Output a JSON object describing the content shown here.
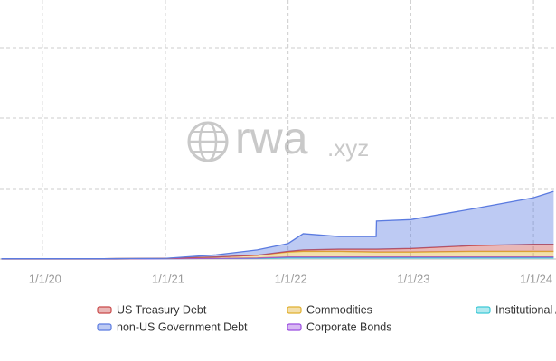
{
  "chart_data": {
    "type": "stacked-area",
    "watermark": {
      "brand": "rwa",
      "suffix": ".xyz"
    },
    "x": [
      "2019-09-01",
      "2020-01-01",
      "2020-07-01",
      "2021-01-01",
      "2021-06-01",
      "2021-10-01",
      "2022-01-01",
      "2022-02-15",
      "2022-06-01",
      "2022-09-20",
      "2022-09-21",
      "2023-01-01",
      "2023-07-01",
      "2024-01-01",
      "2024-03-01"
    ],
    "xlim": [
      "2019-08-28",
      "2024-03-08"
    ],
    "xticks": [
      {
        "value": "2020-01-01",
        "label": "1/1/20"
      },
      {
        "value": "2021-01-01",
        "label": "1/1/21"
      },
      {
        "value": "2022-01-01",
        "label": "1/1/22"
      },
      {
        "value": "2023-01-01",
        "label": "1/1/23"
      },
      {
        "value": "2024-01-01",
        "label": "1/1/24"
      }
    ],
    "ylim": [
      0,
      3.68
    ],
    "yticks": [
      0,
      1,
      2,
      3
    ],
    "grid": true,
    "series": [
      {
        "name": "Institutional Alternative Funds",
        "color": "#3ec9d6",
        "values": [
          0,
          0,
          0,
          0.005,
          0.01,
          0.01,
          0.02,
          0.02,
          0.02,
          0.02,
          0.02,
          0.02,
          0.02,
          0.02,
          0.02
        ]
      },
      {
        "name": "Corporate Bonds",
        "color": "#9b4de0",
        "values": [
          0,
          0,
          0,
          0,
          0,
          0.005,
          0.01,
          0.01,
          0.01,
          0.01,
          0.01,
          0.01,
          0.01,
          0.01,
          0.01
        ]
      },
      {
        "name": "Commodities",
        "color": "#e0b030",
        "values": [
          0.005,
          0.005,
          0.005,
          0.005,
          0.02,
          0.04,
          0.07,
          0.08,
          0.08,
          0.07,
          0.07,
          0.07,
          0.08,
          0.08,
          0.08
        ]
      },
      {
        "name": "US Treasury Debt",
        "color": "#c94a4a",
        "values": [
          0,
          0,
          0,
          0,
          0,
          0,
          0.01,
          0.02,
          0.03,
          0.04,
          0.04,
          0.05,
          0.08,
          0.1,
          0.1
        ]
      },
      {
        "name": "non-US Government Debt",
        "color": "#5b7be0",
        "values": [
          0,
          0,
          0,
          0,
          0.03,
          0.075,
          0.11,
          0.23,
          0.18,
          0.18,
          0.4,
          0.41,
          0.52,
          0.66,
          0.75
        ]
      }
    ],
    "legend_order": [
      3,
      2,
      0,
      4,
      1
    ]
  }
}
